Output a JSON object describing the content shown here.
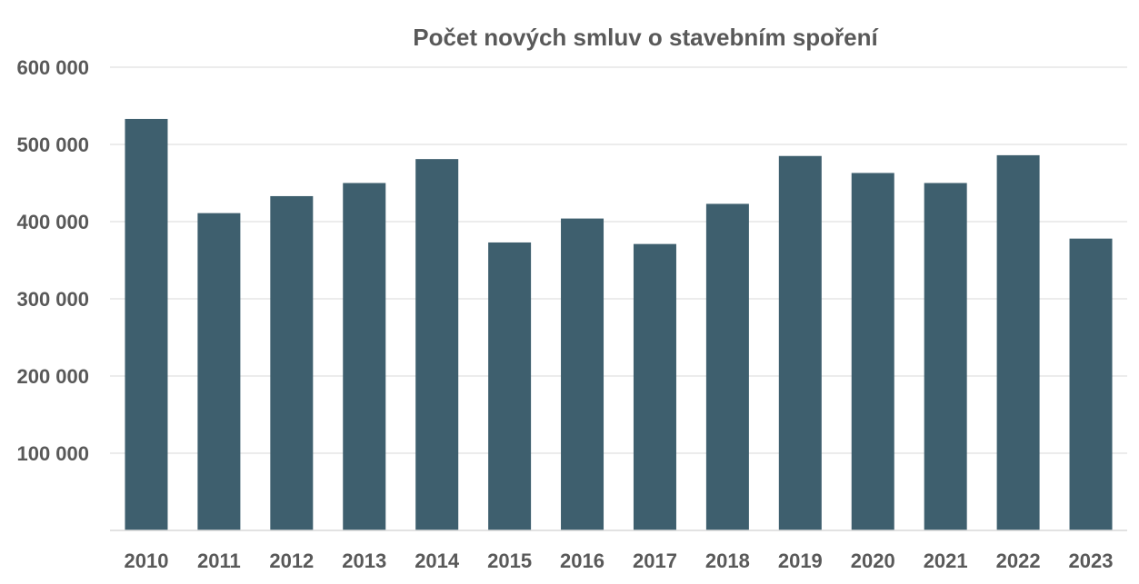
{
  "chart_data": {
    "type": "bar",
    "title": "Počet nových smluv o stavebním spoření",
    "xlabel": "",
    "ylabel": "",
    "categories": [
      "2010",
      "2011",
      "2012",
      "2013",
      "2014",
      "2015",
      "2016",
      "2017",
      "2018",
      "2019",
      "2020",
      "2021",
      "2022",
      "2023"
    ],
    "values": [
      533000,
      411000,
      433000,
      450000,
      481000,
      373000,
      404000,
      371000,
      423000,
      485000,
      463000,
      450000,
      486000,
      378000
    ],
    "ylim": [
      0,
      600000
    ],
    "yticks": [
      100000,
      200000,
      300000,
      400000,
      500000,
      600000
    ],
    "ytick_labels": [
      "100 000",
      "200 000",
      "300 000",
      "400 000",
      "500 000",
      "600 000"
    ],
    "grid": true,
    "legend": "none",
    "bar_color": "#3e5f6e"
  }
}
